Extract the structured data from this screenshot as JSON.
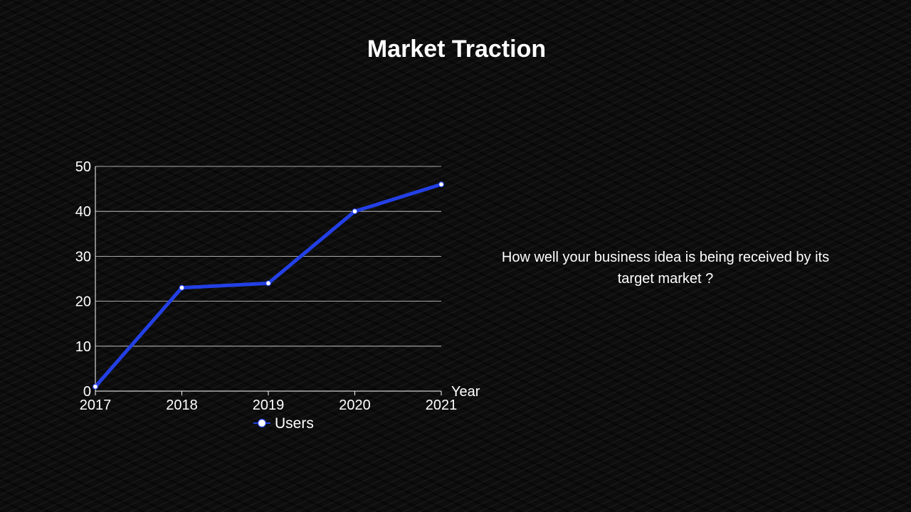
{
  "slide": {
    "title": "Market Traction",
    "description": "How well your business idea is being received by its target market ?"
  },
  "chart_data": {
    "type": "line",
    "title": "",
    "xlabel": "Year",
    "ylabel": "",
    "categories": [
      "2017",
      "2018",
      "2019",
      "2020",
      "2021"
    ],
    "series": [
      {
        "name": "Users",
        "values": [
          1,
          23,
          24,
          40,
          46
        ]
      }
    ],
    "ylim": [
      0,
      50
    ],
    "yticks": [
      0,
      10,
      20,
      30,
      40,
      50
    ],
    "grid": true,
    "legend": "bottom",
    "colors": {
      "line": "#2340e6",
      "marker_fill": "#ffffff",
      "grid": "#ffffff",
      "text": "#ffffff"
    }
  }
}
